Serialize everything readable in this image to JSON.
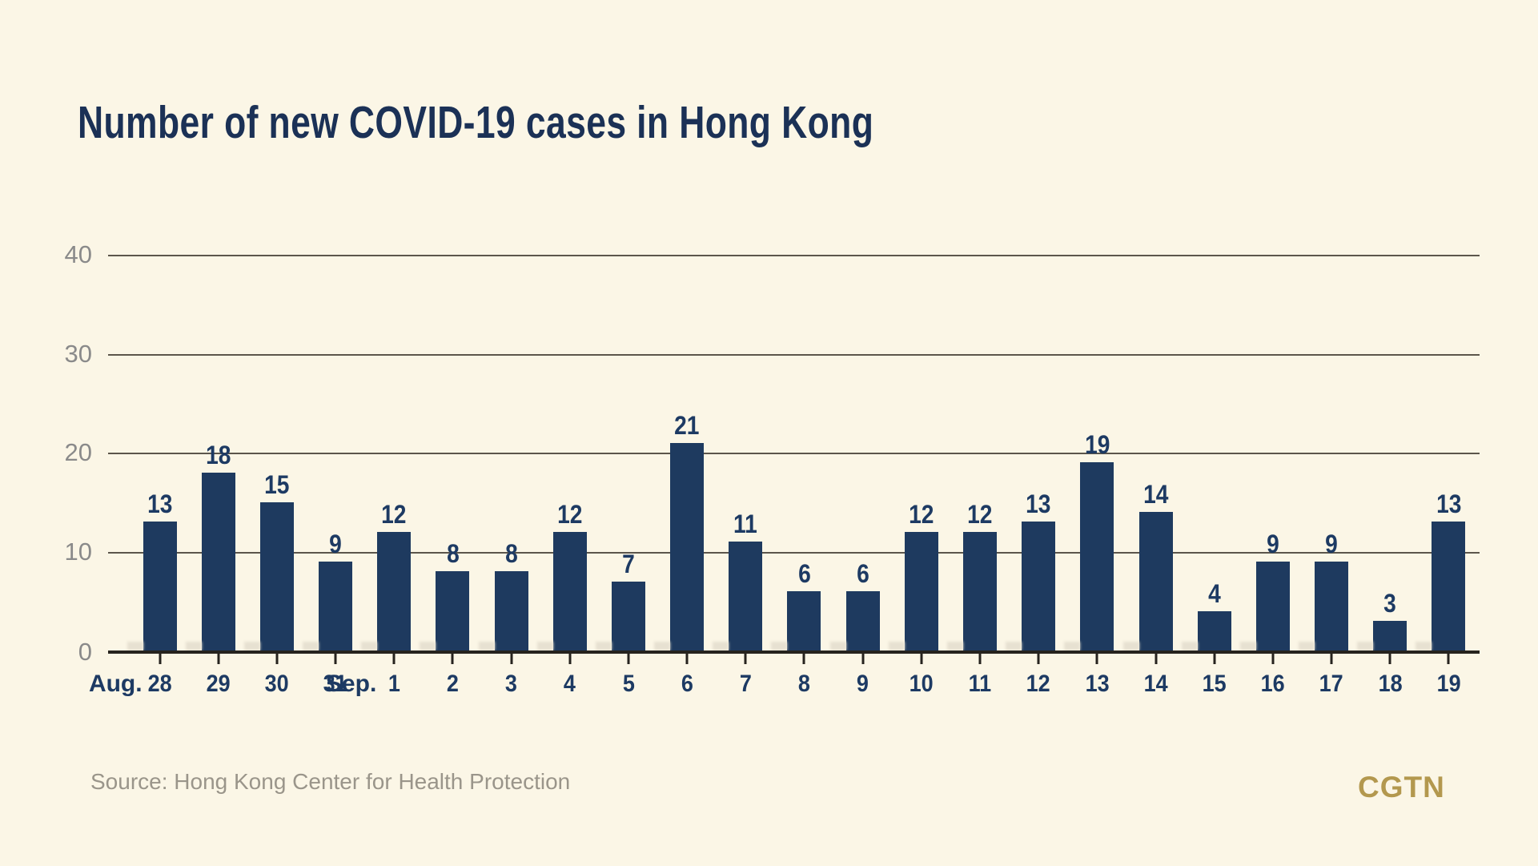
{
  "title": "Number of new COVID-19 cases in Hong Kong",
  "source": "Source: Hong Kong Center for Health Protection",
  "brand": "CGTN",
  "colors": {
    "background": "#fbf6e6",
    "bar": "#1e3a5f",
    "title_text": "#1b3156",
    "label_text": "#1d3a63",
    "y_axis_text": "#8a8a8a",
    "gridline": "#5c564b",
    "axis_line": "#26231e",
    "source_text": "#9a958a",
    "brand_gold": "#b3984e"
  },
  "chart_data": {
    "type": "bar",
    "title": "Number of new COVID-19 cases in Hong Kong",
    "categories": [
      "Aug. 28",
      "29",
      "30",
      "31",
      "Sep. 1",
      "2",
      "3",
      "4",
      "5",
      "6",
      "7",
      "8",
      "9",
      "10",
      "11",
      "12",
      "13",
      "14",
      "15",
      "16",
      "17",
      "18",
      "19"
    ],
    "values": [
      13,
      18,
      15,
      9,
      12,
      8,
      8,
      12,
      7,
      21,
      11,
      6,
      6,
      12,
      12,
      13,
      19,
      14,
      4,
      9,
      9,
      3,
      13
    ],
    "x_labels": [
      {
        "month": "Aug.",
        "day": "28"
      },
      {
        "day": "29"
      },
      {
        "day": "30"
      },
      {
        "day": "31"
      },
      {
        "month": "Sep.",
        "day": "1"
      },
      {
        "day": "2"
      },
      {
        "day": "3"
      },
      {
        "day": "4"
      },
      {
        "day": "5"
      },
      {
        "day": "6"
      },
      {
        "day": "7"
      },
      {
        "day": "8"
      },
      {
        "day": "9"
      },
      {
        "day": "10"
      },
      {
        "day": "11"
      },
      {
        "day": "12"
      },
      {
        "day": "13"
      },
      {
        "day": "14"
      },
      {
        "day": "15"
      },
      {
        "day": "16"
      },
      {
        "day": "17"
      },
      {
        "day": "18"
      },
      {
        "day": "19"
      }
    ],
    "xlabel": "",
    "ylabel": "",
    "ylim": [
      0,
      40
    ],
    "yticks": [
      0,
      10,
      20,
      30,
      40
    ],
    "grid": true,
    "legend": false,
    "bar_value_labels_shown": true
  }
}
